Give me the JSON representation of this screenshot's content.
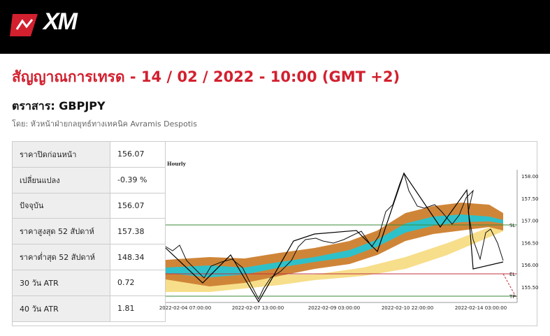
{
  "header": {
    "logo": "XM"
  },
  "title": "สัญญาณการเทรด - 14 / 02 / 2022 - 10:00 (GMT +2)",
  "instrument": "ตราสาร: GBPJPY",
  "author": "โดย: หัวหน้าฝ่ายกลยุทธ์ทางเทคนิค Avramis Despotis",
  "table": {
    "rows": [
      [
        "ราคาปิดก่อนหน้า",
        "156.07"
      ],
      [
        "เปลี่ยนแปลง",
        "-0.39 %"
      ],
      [
        "ปัจจุบัน",
        "156.07"
      ],
      [
        "ราคาสูงสุด 52 สัปดาห์",
        "157.38"
      ],
      [
        "ราคาต่ำสุด 52 สัปดาห์",
        "148.34"
      ],
      [
        "30 วัน ATR",
        "0.72"
      ],
      [
        "40 วัน ATR",
        "1.81"
      ]
    ]
  },
  "chart": {
    "timeframe": "Hourly",
    "price_labels": [
      "158.00",
      "157.50",
      "157.00",
      "156.50",
      "156.00",
      "155.50"
    ],
    "date_labels": [
      "2022-02-04 07:00:00",
      "2022-02-07 13:00:00",
      "2022-02-09 03:00:00",
      "2022-02-10 22:00:00",
      "2022-02-14 03:00:00"
    ],
    "level_labels": [
      "SL",
      "EL",
      "TP"
    ]
  }
}
